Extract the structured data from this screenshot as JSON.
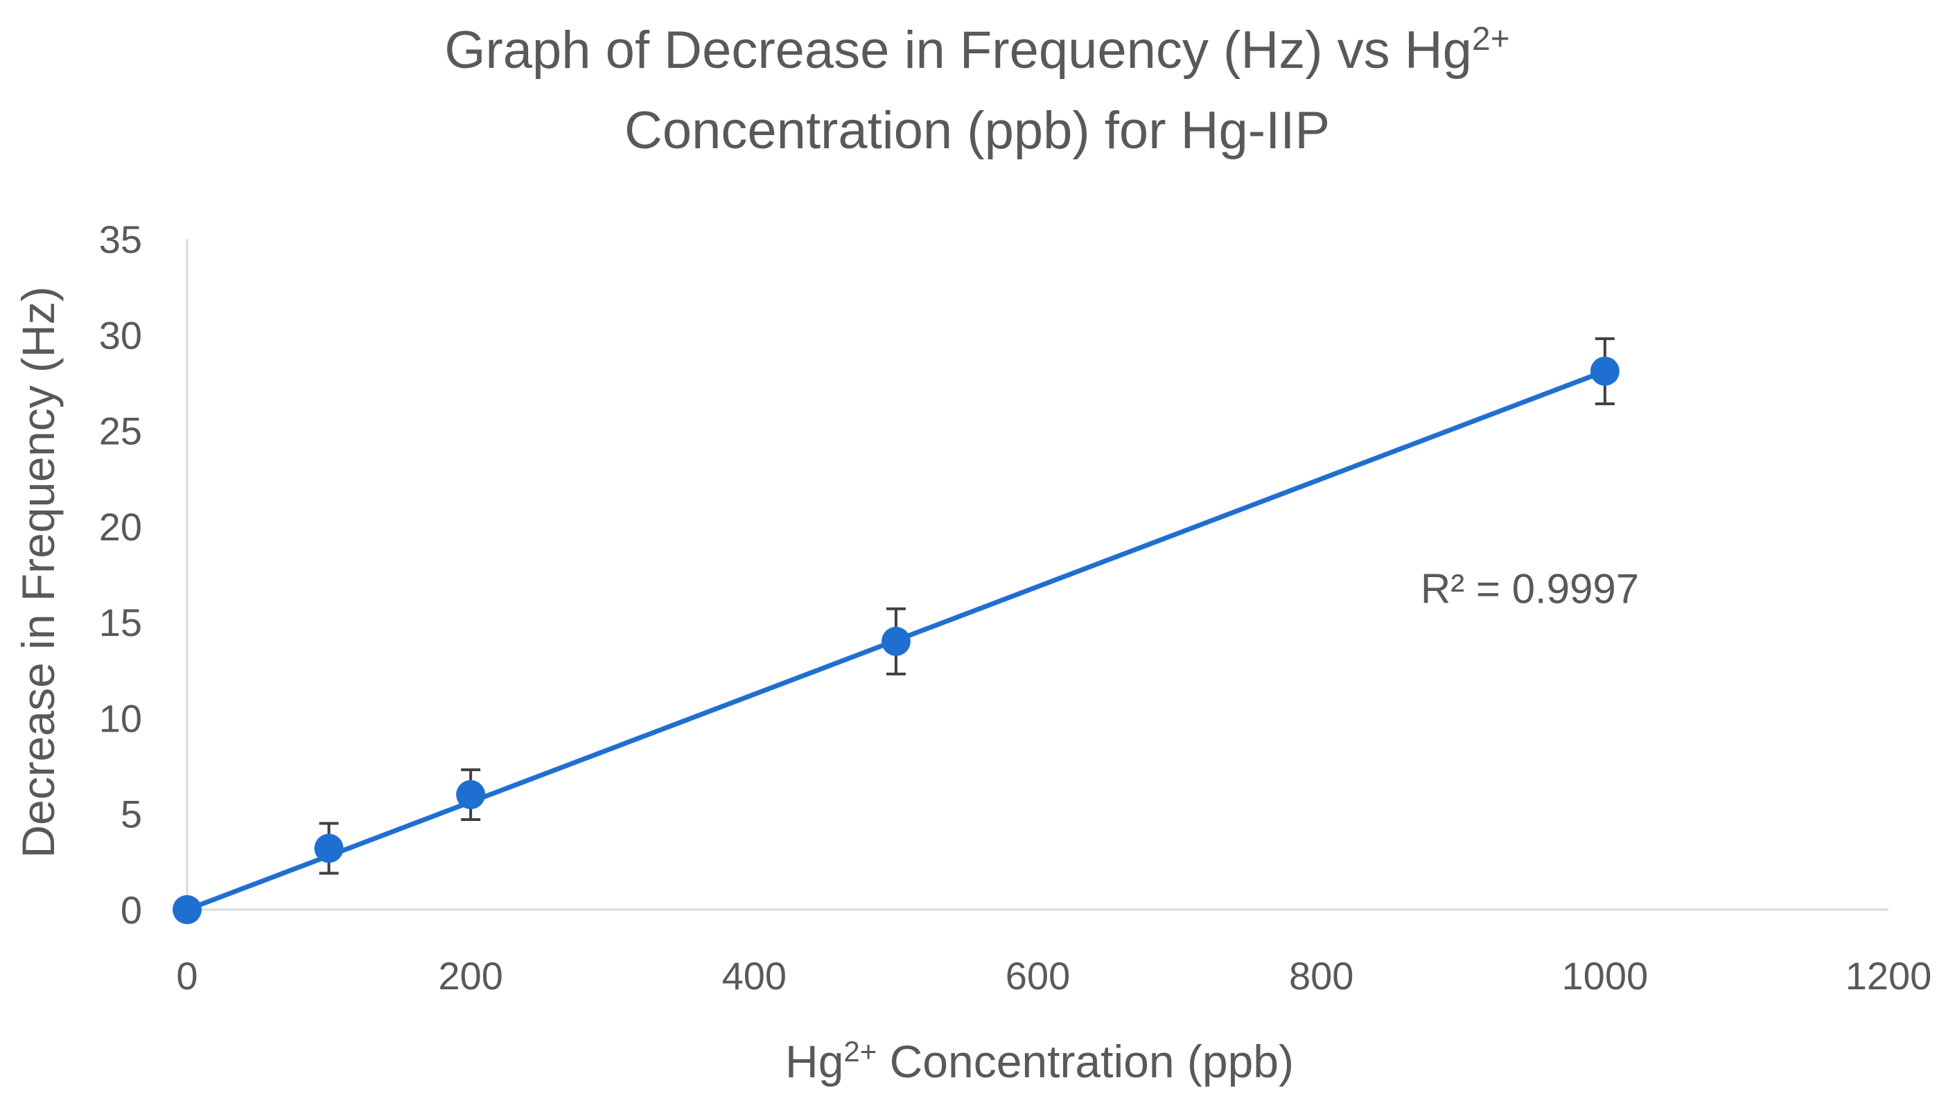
{
  "chart_data": {
    "type": "scatter",
    "title_line1": "Graph of Decrease in Frequency (Hz) vs Hg",
    "title_line1_sup": "2+",
    "title_line2": "Concentration (ppb) for Hg-IIP",
    "xlabel_prefix": "Hg",
    "xlabel_sup": "2+",
    "xlabel_suffix": " Concentration (ppb)",
    "ylabel": "Decrease in Frequency (Hz)",
    "xlim": [
      0,
      1200
    ],
    "ylim": [
      0,
      35
    ],
    "xticks": [
      "0",
      "200",
      "400",
      "600",
      "800",
      "1000",
      "1200"
    ],
    "yticks": [
      "0",
      "5",
      "10",
      "15",
      "20",
      "25",
      "30",
      "35"
    ],
    "grid": false,
    "series": [
      {
        "name": "Hg-IIP",
        "x": [
          0,
          100,
          200,
          500,
          1000
        ],
        "y": [
          0,
          3.2,
          6.0,
          14.0,
          28.1
        ],
        "error": [
          0,
          1.3,
          1.3,
          1.7,
          1.7
        ]
      }
    ],
    "trendline": {
      "type": "linear",
      "x": [
        0,
        1000
      ],
      "y": [
        0,
        28.1
      ]
    },
    "annotation": "R² = 0.9997",
    "annotation_pos": {
      "x": 870,
      "y": 16
    },
    "colors": {
      "series": "#1F6FD0",
      "text": "#595959",
      "axis": "#D9D9D9",
      "error": "#404040"
    }
  }
}
